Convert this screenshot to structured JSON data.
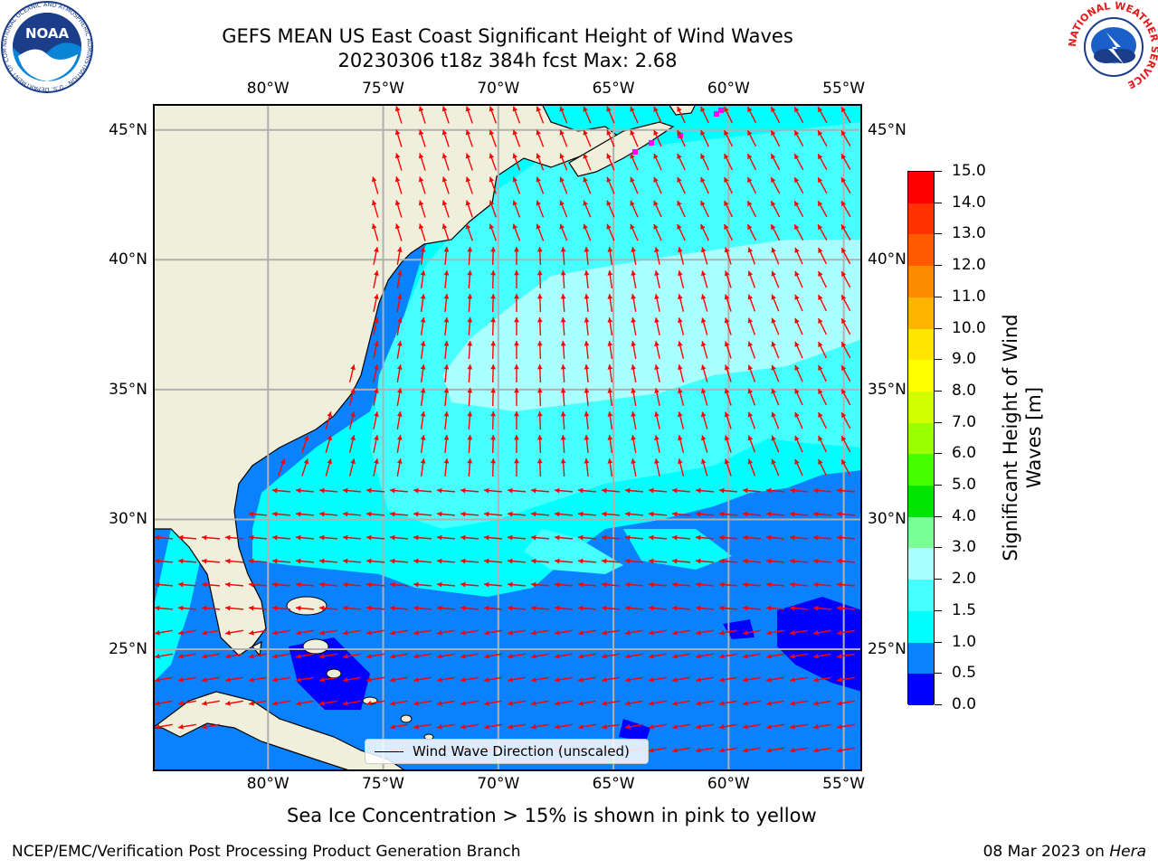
{
  "title": {
    "line1": "GEFS MEAN US East Coast Significant Height of Wind Waves",
    "line2": "20230306 t18z 384h fcst   Max: 2.68"
  },
  "map": {
    "lon_ticks": [
      -80,
      -75,
      -70,
      -65,
      -60,
      -55
    ],
    "lat_ticks": [
      45,
      40,
      35,
      30,
      25
    ],
    "lon_labels": [
      "80°W",
      "75°W",
      "70°W",
      "65°W",
      "60°W",
      "55°W"
    ],
    "lat_labels": [
      "45°N",
      "40°N",
      "35°N",
      "30°N",
      "25°N"
    ],
    "extent": {
      "lon_min": -85,
      "lon_max": -54.2,
      "lat_min": 20.3,
      "lat_max": 46.0
    },
    "land_color": "#efefdc",
    "grid_color": "#b0b0b0",
    "arrow_color": "#ff0000",
    "ice_color": "#ff00ff"
  },
  "colorbar": {
    "title": "Significant Height of Wind Waves [m]",
    "ticks": [
      "0.0",
      "0.5",
      "1.0",
      "1.5",
      "2.0",
      "3.0",
      "4.0",
      "5.0",
      "6.0",
      "7.0",
      "8.0",
      "9.0",
      "10.0",
      "11.0",
      "12.0",
      "13.0",
      "14.0",
      "15.0"
    ],
    "colors": [
      "#0000ff",
      "#0a82ff",
      "#00ffff",
      "#46ffff",
      "#aaffff",
      "#78ff96",
      "#00e600",
      "#46ff00",
      "#9bff00",
      "#d2ff00",
      "#ffff00",
      "#ffe600",
      "#ffb400",
      "#ff8c00",
      "#ff5a00",
      "#ff3200",
      "#ff0000"
    ]
  },
  "legend": {
    "label": "Wind Wave Direction (unscaled)"
  },
  "note": "Sea Ice Concentration > 15% is shown in pink to yellow",
  "footer": {
    "credit": "NCEP/EMC/Verification Post Processing Product Generation Branch",
    "date": "08 Mar 2023 on",
    "host": "Hera"
  },
  "logos": {
    "noaa_text": "NOAA",
    "noaa_ring": "NATIONAL OCEANIC AND ATMOSPHERIC ADMINISTRATION · U.S. DEPARTMENT OF COMMERCE",
    "nws_ring": "NATIONAL WEATHER SERVICE"
  }
}
